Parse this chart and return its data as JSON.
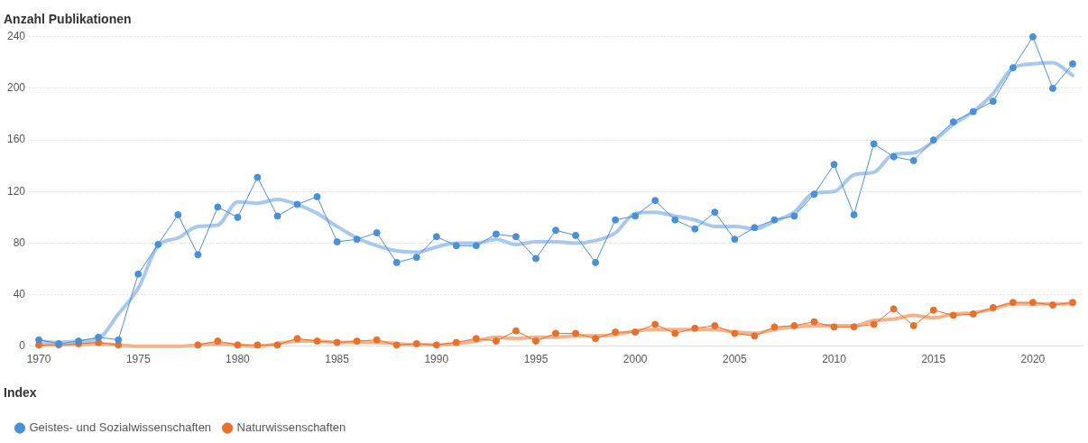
{
  "chart_data": {
    "type": "line",
    "ylabel": "Anzahl Publikationen",
    "legend_title": "Index",
    "x": [
      1970,
      1971,
      1972,
      1973,
      1974,
      1975,
      1976,
      1977,
      1978,
      1979,
      1980,
      1981,
      1982,
      1983,
      1984,
      1985,
      1986,
      1987,
      1988,
      1989,
      1990,
      1991,
      1992,
      1993,
      1994,
      1995,
      1996,
      1997,
      1998,
      1999,
      2000,
      2001,
      2002,
      2003,
      2004,
      2005,
      2006,
      2007,
      2008,
      2009,
      2010,
      2011,
      2012,
      2013,
      2014,
      2015,
      2016,
      2017,
      2018,
      2019,
      2020,
      2021,
      2022
    ],
    "series": [
      {
        "color": "#a9c9ec",
        "marker": "none",
        "values": [
          4,
          3,
          4,
          6,
          25,
          45,
          78,
          84,
          93,
          94,
          112,
          111,
          114,
          110,
          103,
          93,
          84,
          78,
          74,
          73,
          77,
          80,
          80,
          83,
          79,
          81,
          81,
          80,
          82,
          88,
          103,
          104,
          101,
          98,
          93,
          93,
          91,
          97,
          104,
          119,
          120,
          133,
          135,
          149,
          150,
          159,
          172,
          182,
          196,
          216,
          219,
          220,
          210
        ]
      },
      {
        "color": "#f3b48c",
        "marker": "none",
        "values": [
          1,
          1,
          2,
          2,
          1,
          0,
          0,
          0,
          1,
          2,
          1,
          0,
          2,
          4,
          4,
          3,
          3,
          3,
          2,
          1,
          1,
          2,
          4,
          7,
          6,
          7,
          7,
          8,
          8,
          9,
          12,
          13,
          13,
          13,
          13,
          11,
          10,
          13,
          15,
          16,
          16,
          16,
          20,
          21,
          24,
          22,
          25,
          26,
          29,
          33,
          33,
          33,
          33
        ]
      },
      {
        "name": "Geistes- und Sozialwissenschaften",
        "color": "#4a90d9",
        "values": [
          5,
          2,
          4,
          7,
          5,
          56,
          79,
          102,
          71,
          108,
          100,
          131,
          101,
          110,
          116,
          81,
          83,
          88,
          65,
          69,
          85,
          78,
          78,
          87,
          85,
          68,
          90,
          86,
          65,
          98,
          101,
          113,
          98,
          91,
          104,
          83,
          92,
          98,
          101,
          118,
          141,
          102,
          157,
          147,
          144,
          160,
          174,
          182,
          190,
          216,
          240,
          200,
          219
        ]
      },
      {
        "name": "Naturwissenschaften",
        "color": "#e8702a",
        "values": [
          1,
          1,
          2,
          3,
          1,
          null,
          null,
          null,
          1,
          4,
          1,
          1,
          1,
          6,
          4,
          3,
          4,
          5,
          1,
          2,
          1,
          3,
          6,
          4,
          12,
          4,
          10,
          10,
          6,
          11,
          11,
          17,
          10,
          14,
          16,
          10,
          8,
          15,
          16,
          19,
          15,
          15,
          17,
          29,
          16,
          28,
          24,
          25,
          30,
          34,
          34,
          32,
          34
        ]
      }
    ],
    "xlim": [
      1969.5,
      2022.5
    ],
    "xticks": [
      1970,
      1975,
      1980,
      1985,
      1990,
      1995,
      2000,
      2005,
      2010,
      2015,
      2020
    ],
    "ylim": [
      0,
      240
    ],
    "yticks": [
      0,
      40,
      80,
      120,
      160,
      200,
      240
    ],
    "grid": "y",
    "legend": "bottom",
    "marker": "circle",
    "line_style": "solid"
  }
}
